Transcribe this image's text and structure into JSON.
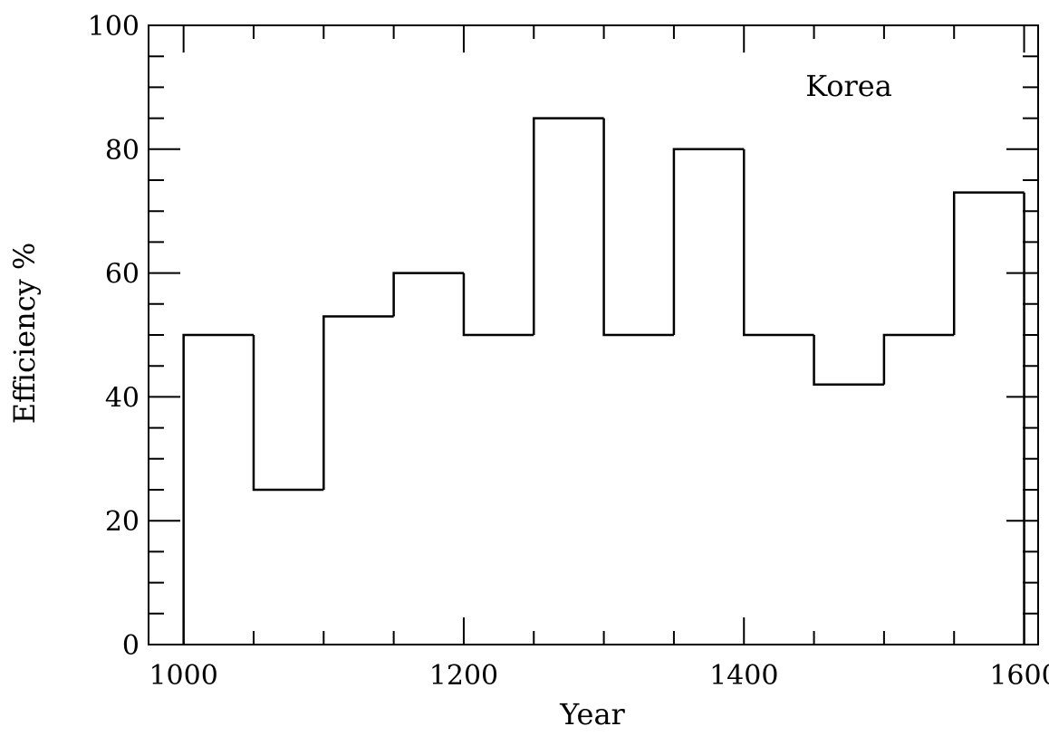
{
  "chart_data": {
    "type": "line",
    "style": "step-histogram",
    "title": "",
    "xlabel": "Year",
    "ylabel": "Efficiency %",
    "annotation": "Korea",
    "xlim": [
      975,
      1610
    ],
    "ylim": [
      0,
      100
    ],
    "x_ticks": [
      1000,
      1200,
      1400,
      1600
    ],
    "x_tick_labels": [
      "1000",
      "1200",
      "1400",
      "1600"
    ],
    "y_ticks": [
      0,
      20,
      40,
      60,
      80,
      100
    ],
    "y_tick_labels": [
      "0",
      "20",
      "40",
      "60",
      "80",
      "100"
    ],
    "bins": [
      {
        "start": 1000,
        "end": 1050,
        "value": 50
      },
      {
        "start": 1050,
        "end": 1100,
        "value": 25
      },
      {
        "start": 1100,
        "end": 1150,
        "value": 53
      },
      {
        "start": 1150,
        "end": 1200,
        "value": 60
      },
      {
        "start": 1200,
        "end": 1250,
        "value": 50
      },
      {
        "start": 1250,
        "end": 1300,
        "value": 85
      },
      {
        "start": 1300,
        "end": 1350,
        "value": 50
      },
      {
        "start": 1350,
        "end": 1400,
        "value": 80
      },
      {
        "start": 1400,
        "end": 1450,
        "value": 50
      },
      {
        "start": 1450,
        "end": 1500,
        "value": 42
      },
      {
        "start": 1500,
        "end": 1550,
        "value": 50
      },
      {
        "start": 1550,
        "end": 1600,
        "value": 73
      }
    ],
    "grid": false,
    "line_color": "#000000"
  }
}
